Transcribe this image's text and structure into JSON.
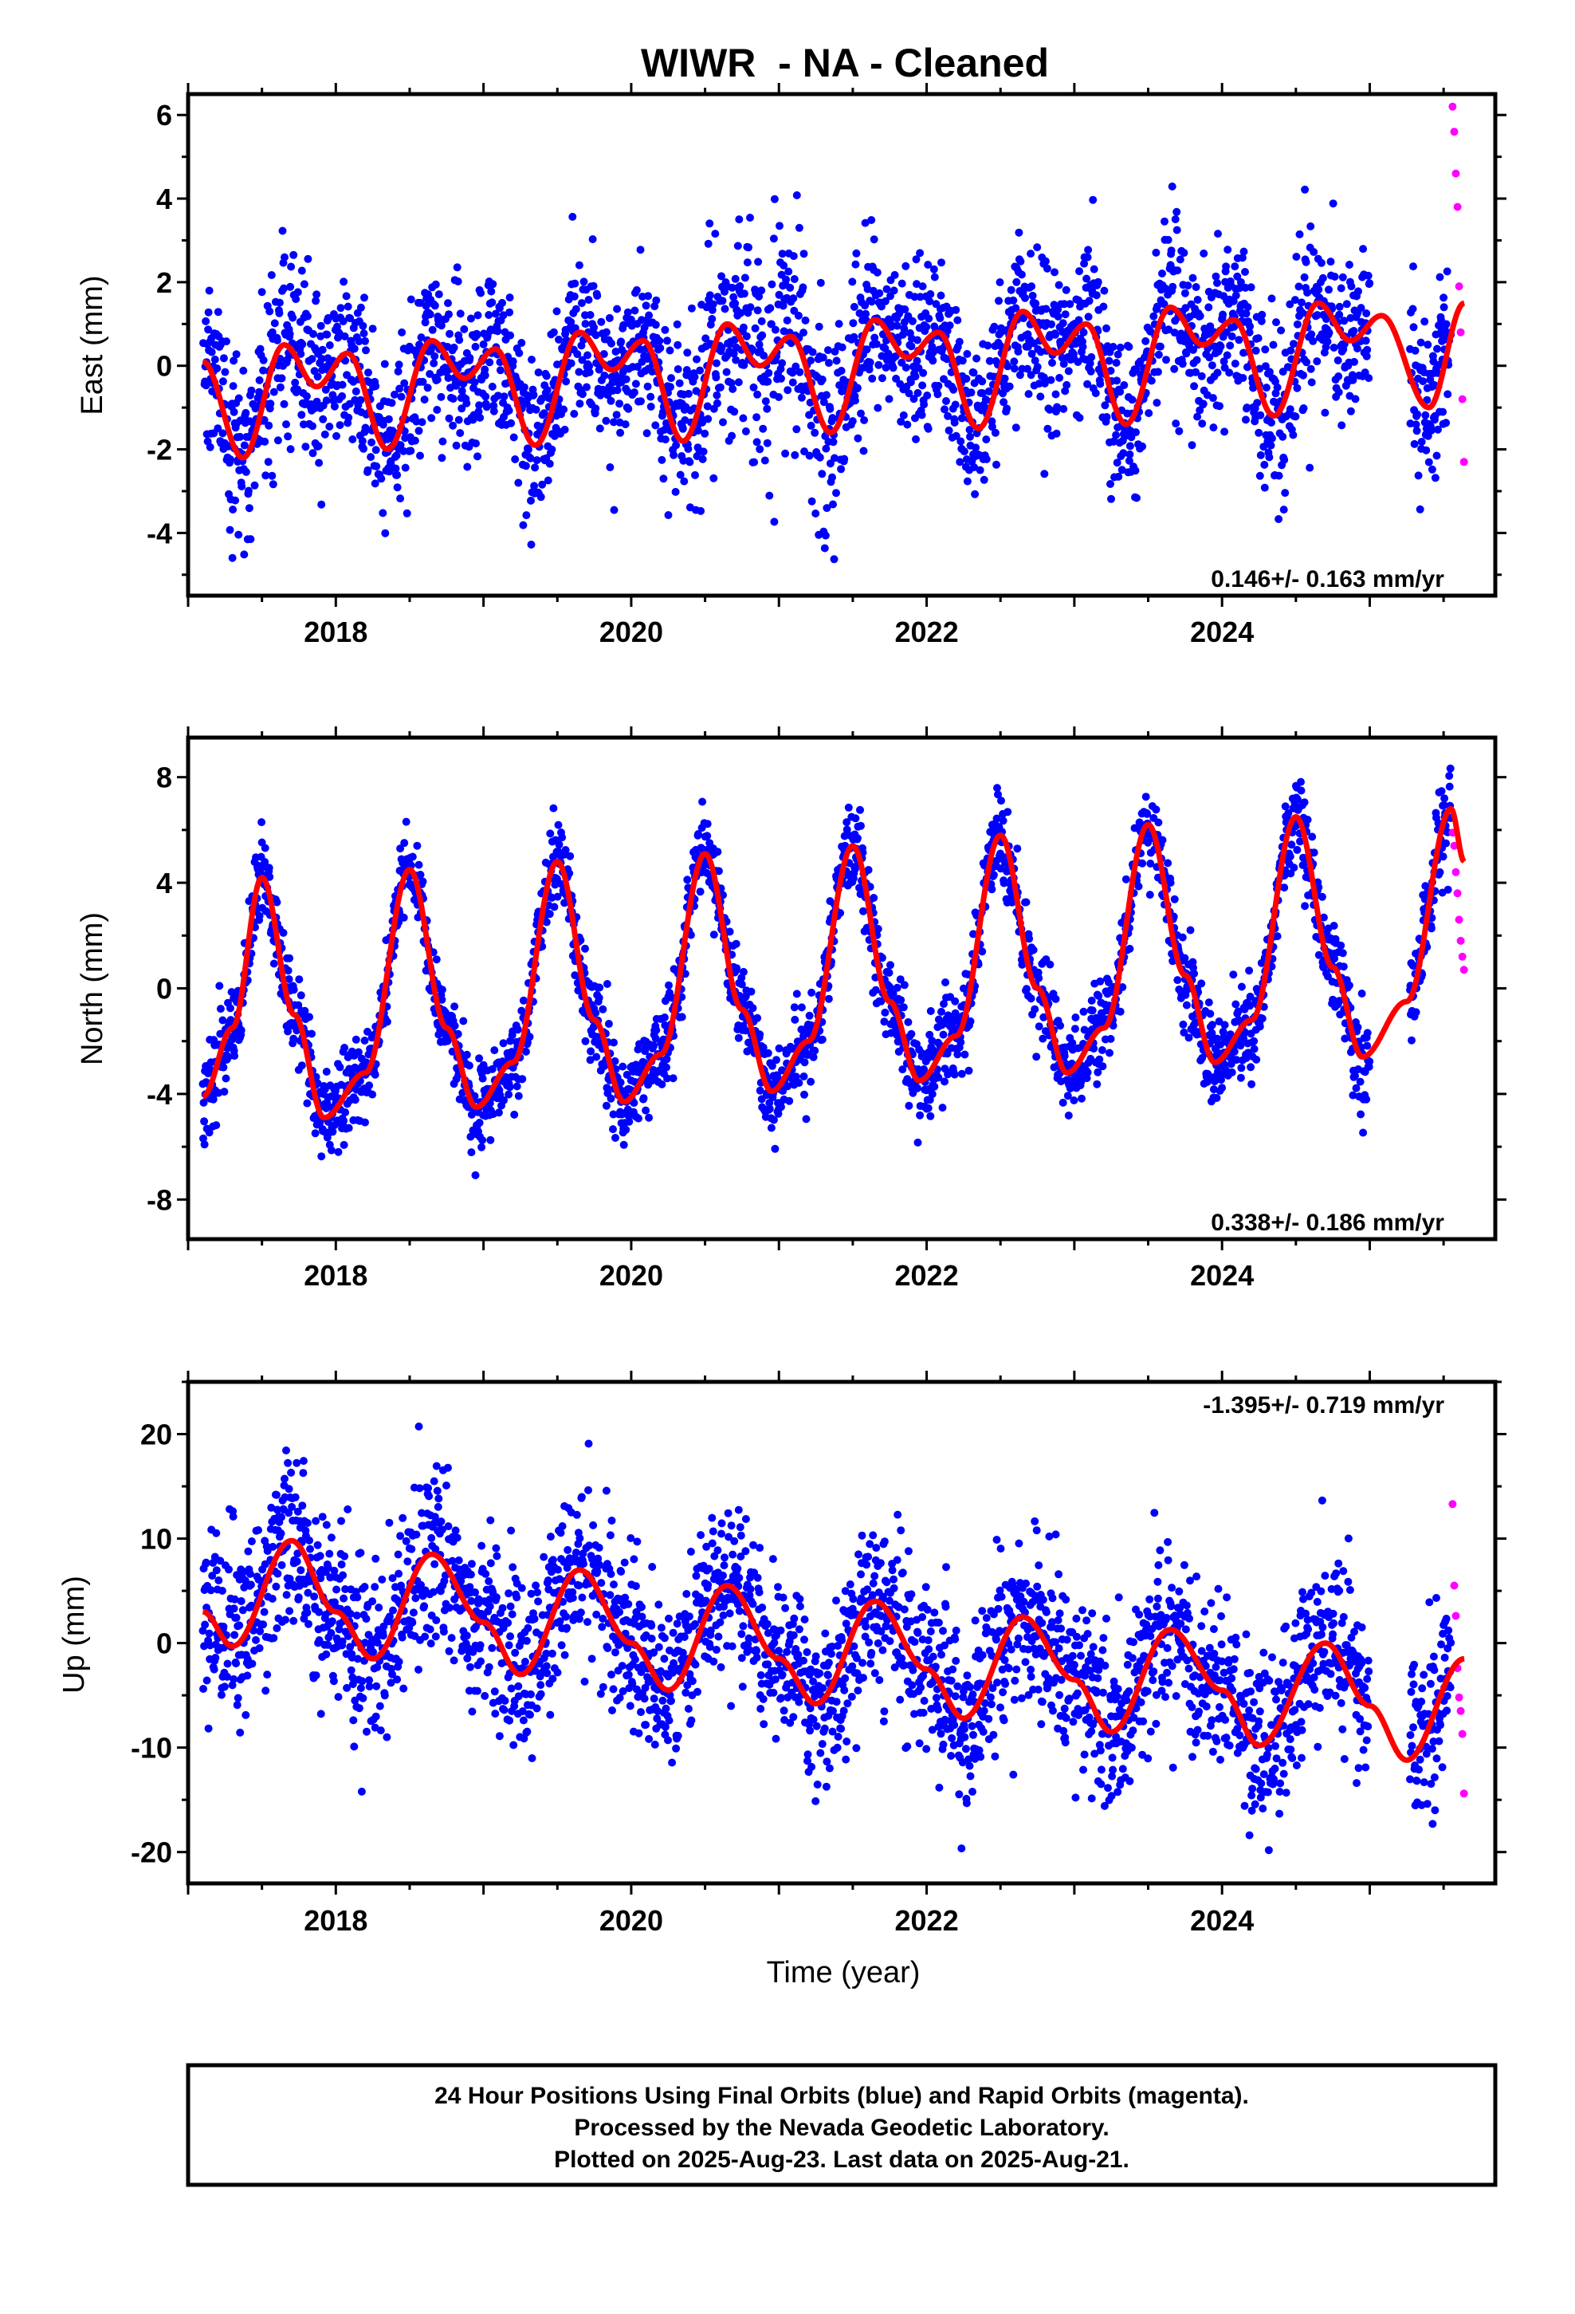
{
  "title": "WIWR  - NA - Cleaned",
  "colors": {
    "final_orbits": "#0000ff",
    "rapid_orbits": "#ff00ff",
    "model_fit": "#ff0000",
    "axes": "#000000",
    "background": "#ffffff"
  },
  "chart_data": [
    {
      "type": "scatter",
      "component": "east",
      "ylabel": "East (mm)",
      "xlabel": "",
      "xlim": [
        2017.0,
        2025.85
      ],
      "ylim": [
        -5.5,
        6.5
      ],
      "x_ticks": [
        "2018",
        "2020",
        "2022",
        "2024"
      ],
      "y_ticks": [
        "6",
        "4",
        "2",
        "0",
        "-2",
        "-4"
      ],
      "rate_text": "0.146+/- 0.163 mm/yr",
      "grid": false,
      "data_range": [
        2017.1,
        2025.64
      ],
      "final_orbits_end": 2025.55,
      "rapid_orbits_values": [
        6.2,
        5.6,
        4.6,
        3.8,
        1.9,
        0.8,
        -0.8,
        -2.3
      ],
      "model": {
        "start": 2017.1,
        "end": 2025.64,
        "control_points": [
          [
            2017.1,
            0.1
          ],
          [
            2017.37,
            -2.2
          ],
          [
            2017.65,
            0.5
          ],
          [
            2017.87,
            -0.5
          ],
          [
            2018.08,
            0.3
          ],
          [
            2018.35,
            -2.0
          ],
          [
            2018.65,
            0.6
          ],
          [
            2018.87,
            -0.3
          ],
          [
            2019.08,
            0.4
          ],
          [
            2019.35,
            -1.9
          ],
          [
            2019.65,
            0.8
          ],
          [
            2019.87,
            -0.1
          ],
          [
            2020.08,
            0.6
          ],
          [
            2020.35,
            -1.8
          ],
          [
            2020.65,
            1.0
          ],
          [
            2020.87,
            0.0
          ],
          [
            2021.08,
            0.7
          ],
          [
            2021.35,
            -1.6
          ],
          [
            2021.65,
            1.1
          ],
          [
            2021.87,
            0.2
          ],
          [
            2022.08,
            0.8
          ],
          [
            2022.35,
            -1.5
          ],
          [
            2022.65,
            1.3
          ],
          [
            2022.87,
            0.3
          ],
          [
            2023.08,
            1.0
          ],
          [
            2023.35,
            -1.4
          ],
          [
            2023.65,
            1.4
          ],
          [
            2023.87,
            0.5
          ],
          [
            2024.08,
            1.1
          ],
          [
            2024.35,
            -1.2
          ],
          [
            2024.65,
            1.5
          ],
          [
            2024.87,
            0.6
          ],
          [
            2025.08,
            1.2
          ],
          [
            2025.4,
            -1.0
          ],
          [
            2025.64,
            1.5
          ]
        ]
      },
      "noise": {
        "sigma": 1.0,
        "extra_year": 2021.0,
        "extra_sigma": 0.35
      }
    },
    {
      "type": "scatter",
      "component": "north",
      "ylabel": "North (mm)",
      "xlabel": "",
      "xlim": [
        2017.0,
        2025.85
      ],
      "ylim": [
        -9.5,
        9.5
      ],
      "x_ticks": [
        "2018",
        "2020",
        "2022",
        "2024"
      ],
      "y_ticks": [
        "8",
        "4",
        "0",
        "-4",
        "-8"
      ],
      "rate_text": "0.338+/- 0.186 mm/yr",
      "grid": false,
      "data_range": [
        2017.1,
        2025.64
      ],
      "final_orbits_end": 2025.55,
      "rapid_orbits_values": [
        5.9,
        5.4,
        4.4,
        3.6,
        2.6,
        1.8,
        1.2,
        0.7
      ],
      "model": {
        "start": 2017.1,
        "end": 2025.64,
        "control_points": [
          [
            2017.1,
            -4.1
          ],
          [
            2017.3,
            -1.5
          ],
          [
            2017.5,
            4.2
          ],
          [
            2017.72,
            -1.0
          ],
          [
            2017.92,
            -4.9
          ],
          [
            2018.2,
            -3.2
          ],
          [
            2018.5,
            4.5
          ],
          [
            2018.75,
            -1.5
          ],
          [
            2018.95,
            -4.5
          ],
          [
            2019.2,
            -2.8
          ],
          [
            2019.5,
            4.8
          ],
          [
            2019.75,
            -1.2
          ],
          [
            2019.95,
            -4.3
          ],
          [
            2020.2,
            -2.5
          ],
          [
            2020.5,
            5.1
          ],
          [
            2020.75,
            -0.8
          ],
          [
            2020.95,
            -3.9
          ],
          [
            2021.2,
            -2.0
          ],
          [
            2021.5,
            5.4
          ],
          [
            2021.75,
            -0.5
          ],
          [
            2021.95,
            -3.5
          ],
          [
            2022.2,
            -1.8
          ],
          [
            2022.5,
            5.8
          ],
          [
            2022.75,
            0.0
          ],
          [
            2022.95,
            -3.2
          ],
          [
            2023.2,
            -1.5
          ],
          [
            2023.5,
            6.2
          ],
          [
            2023.75,
            0.5
          ],
          [
            2023.95,
            -2.8
          ],
          [
            2024.2,
            -1.2
          ],
          [
            2024.5,
            6.5
          ],
          [
            2024.75,
            0.8
          ],
          [
            2024.95,
            -2.6
          ],
          [
            2025.25,
            -0.5
          ],
          [
            2025.55,
            6.8
          ],
          [
            2025.64,
            4.8
          ]
        ]
      },
      "noise": {
        "sigma": 0.85,
        "extra_year": 0,
        "extra_sigma": 0
      }
    },
    {
      "type": "scatter",
      "component": "up",
      "ylabel": "Up (mm)",
      "xlabel": "Time (year)",
      "xlim": [
        2017.0,
        2025.85
      ],
      "ylim": [
        -23.0,
        25.0
      ],
      "x_ticks": [
        "2018",
        "2020",
        "2022",
        "2024"
      ],
      "y_ticks": [
        "20",
        "10",
        "0",
        "-10",
        "-20"
      ],
      "rate_text": "-1.395+/- 0.719 mm/yr",
      "grid": false,
      "data_range": [
        2017.1,
        2025.64
      ],
      "final_orbits_end": 2025.55,
      "rapid_orbits_values": [
        13.3,
        5.5,
        2.6,
        -2.4,
        -5.2,
        -6.5,
        -8.7,
        -14.4
      ],
      "model": {
        "start": 2017.1,
        "end": 2025.64,
        "control_points": [
          [
            2017.1,
            3.0
          ],
          [
            2017.3,
            -0.3
          ],
          [
            2017.7,
            9.8
          ],
          [
            2018.0,
            3.0
          ],
          [
            2018.25,
            -1.5
          ],
          [
            2018.65,
            8.5
          ],
          [
            2019.0,
            2.0
          ],
          [
            2019.25,
            -3.0
          ],
          [
            2019.65,
            7.0
          ],
          [
            2020.0,
            0.0
          ],
          [
            2020.25,
            -4.5
          ],
          [
            2020.65,
            5.5
          ],
          [
            2021.0,
            -1.5
          ],
          [
            2021.25,
            -5.8
          ],
          [
            2021.65,
            4.0
          ],
          [
            2022.0,
            -2.5
          ],
          [
            2022.25,
            -7.2
          ],
          [
            2022.65,
            2.5
          ],
          [
            2023.0,
            -3.5
          ],
          [
            2023.25,
            -8.5
          ],
          [
            2023.65,
            1.3
          ],
          [
            2024.0,
            -4.5
          ],
          [
            2024.25,
            -9.8
          ],
          [
            2024.7,
            0.0
          ],
          [
            2025.0,
            -6.0
          ],
          [
            2025.25,
            -11.2
          ],
          [
            2025.64,
            -1.5
          ]
        ]
      },
      "noise": {
        "sigma": 4.2,
        "extra_year": 0,
        "extra_sigma": 0
      }
    }
  ],
  "footer": {
    "line1": "24 Hour Positions Using Final Orbits (blue) and Rapid Orbits (magenta).",
    "line2": "Processed by the Nevada Geodetic Laboratory.",
    "line3": "Plotted on 2025-Aug-23. Last data on 2025-Aug-21."
  }
}
